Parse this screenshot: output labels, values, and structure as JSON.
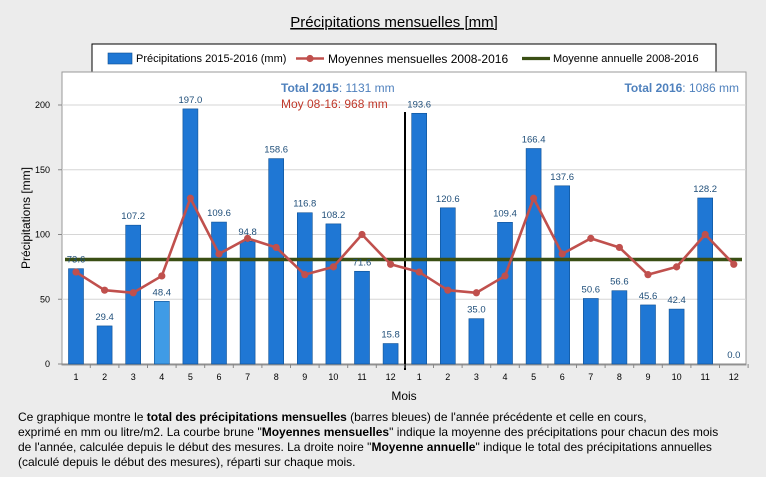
{
  "chart_data": {
    "type": "bar",
    "title": "Précipitations mensuelles [mm]",
    "ylabel": "Précipitations [mm]",
    "xlabel": "Mois",
    "ylim": [
      0,
      200
    ],
    "yticks": [
      0,
      50,
      100,
      150,
      200
    ],
    "grid": true,
    "legend_position": "top",
    "categories": [
      "1",
      "2",
      "3",
      "4",
      "5",
      "6",
      "7",
      "8",
      "9",
      "10",
      "11",
      "12",
      "1",
      "2",
      "3",
      "4",
      "5",
      "6",
      "7",
      "8",
      "9",
      "10",
      "11",
      "12"
    ],
    "series": [
      {
        "name": "Précipitations 2015-2016 (mm)",
        "kind": "bar",
        "color": "#1f77d4",
        "values": [
          73.6,
          29.4,
          107.2,
          48.4,
          197.0,
          109.6,
          94.8,
          158.6,
          116.8,
          108.2,
          71.6,
          15.8,
          193.6,
          120.6,
          35.0,
          109.4,
          166.4,
          137.6,
          50.6,
          56.6,
          45.6,
          42.4,
          128.2,
          0.0
        ],
        "labels": [
          "73.6",
          "29.4",
          "107.2",
          "48.4",
          "197.0",
          "109.6",
          "94.8",
          "158.6",
          "116.8",
          "108.2",
          "71.6",
          "15.8",
          "193.6",
          "120.6",
          "35.0",
          "109.4",
          "166.4",
          "137.6",
          "50.6",
          "56.6",
          "45.6",
          "42.4",
          "128.2",
          "0.0"
        ]
      },
      {
        "name": "Moyennes mensuelles 2008-2016",
        "kind": "line",
        "color": "#c0504d",
        "values": [
          71,
          57,
          55,
          68,
          128,
          85,
          97,
          90,
          69,
          75,
          100,
          77,
          71,
          57,
          55,
          68,
          128,
          85,
          97,
          90,
          69,
          75,
          100,
          77
        ]
      },
      {
        "name": "Moyenne annuelle 2008-2016",
        "kind": "hline",
        "color": "#3a4f14",
        "value": 80.7
      }
    ],
    "annotations": {
      "total_2015_label": "Total 2015",
      "total_2015_value": ": 1131 mm",
      "moy_label": "Moy 08-16: 968 mm",
      "total_2016_label": "Total 2016",
      "total_2016_value": ": 1086 mm"
    },
    "colors": {
      "bar_highlight": "#3f9be6",
      "label_text": "#1f4e79",
      "total_text": "#4f81bd",
      "moy_text": "#c0392b"
    }
  },
  "caption": {
    "p1a": "Ce graphique  montre le ",
    "p1b": "total des précipitations mensuelles",
    "p1c": " (barres bleues) de l'année précédente et celle en cours,",
    "p2a": " exprimé en  mm ou litre/m2. La courbe brune \"",
    "p2b": "Moyennes mensuelles",
    "p2c": "\" indique la moyenne des précipitations pour chacun des mois",
    "p3": " de l'année, calculée depuis le début des mesures. La droite noire \"",
    "p3b": "Moyenne annuelle",
    "p3c": "\" indique le total des précipitations annuelles",
    "p4": " (calculé depuis le début  des mesures), réparti sur chaque mois."
  }
}
